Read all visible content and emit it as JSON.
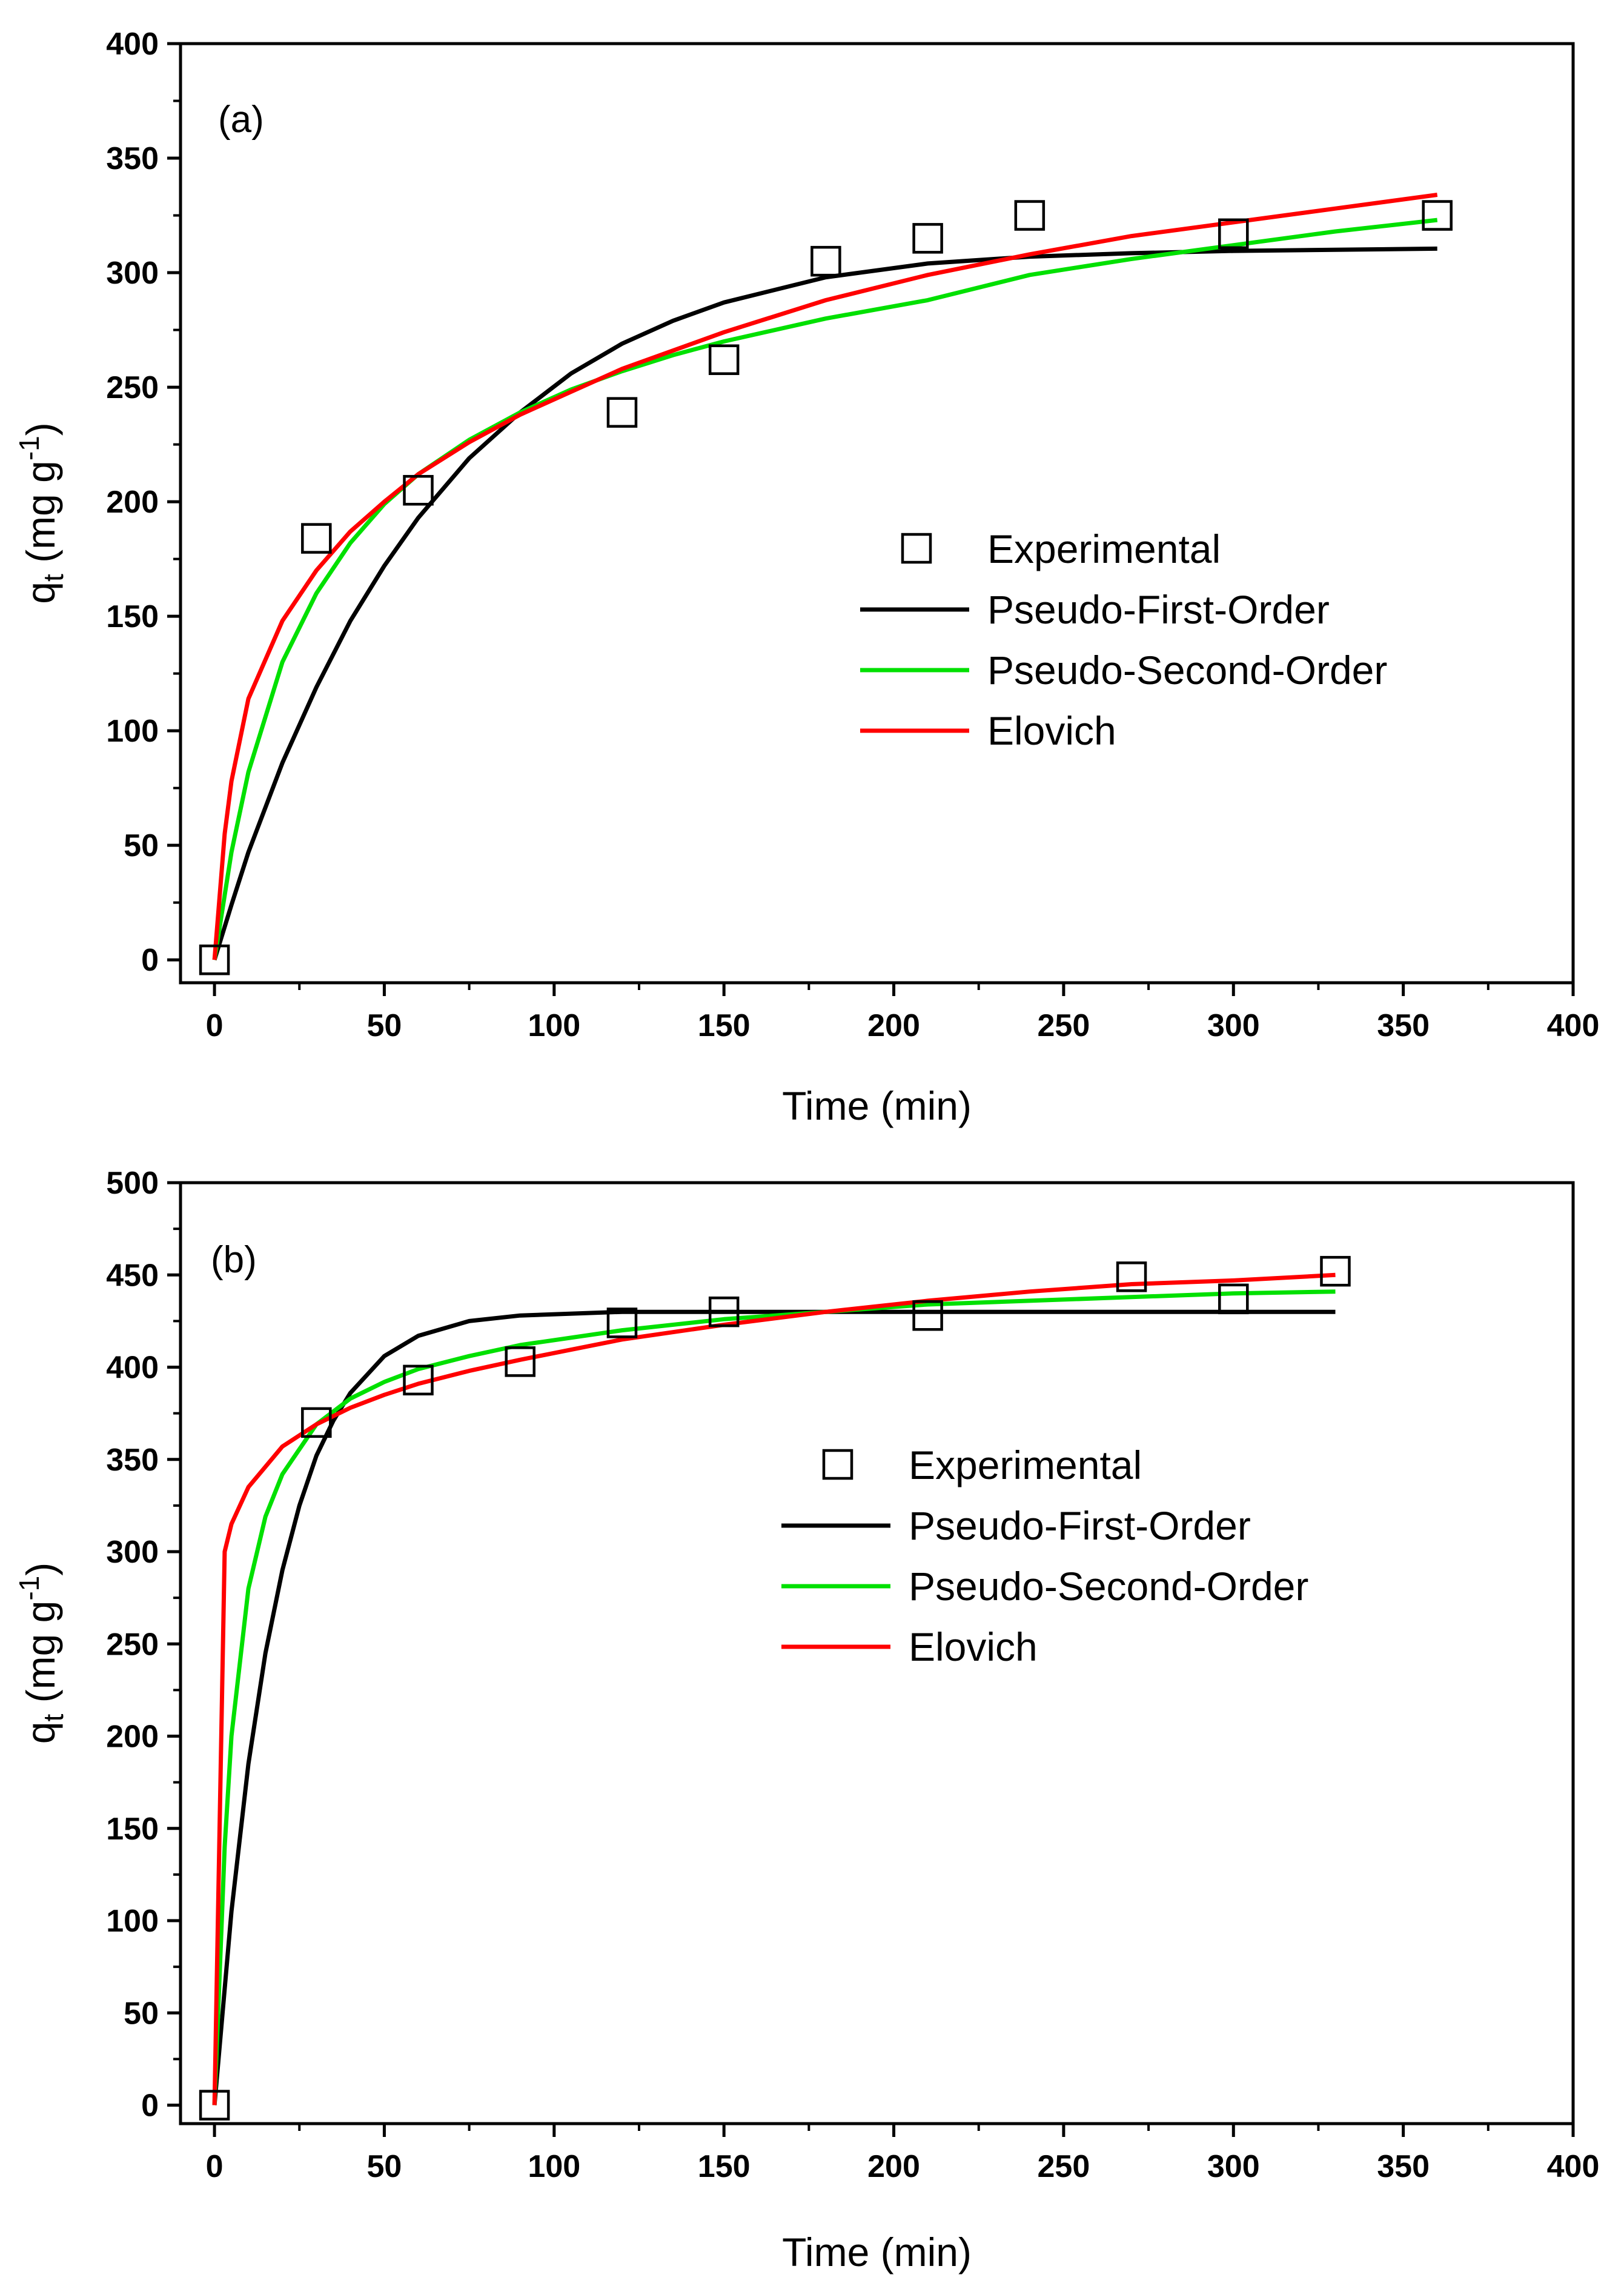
{
  "chart_data": [
    {
      "type": "scatter",
      "panel_label": "(a)",
      "xlabel": "Time (min)",
      "ylabel": {
        "base": "q",
        "sub": "t",
        "unit_pre": " (mg g",
        "unit_sup": "-1",
        "unit_post": ")"
      },
      "xlim": [
        -10,
        400
      ],
      "ylim": [
        -10,
        400
      ],
      "xticks": [
        0,
        50,
        100,
        150,
        200,
        250,
        300,
        350,
        400
      ],
      "yticks": [
        0,
        50,
        100,
        150,
        200,
        250,
        300,
        350,
        400
      ],
      "grid": false,
      "legend_position": "center-right",
      "legend": [
        "Experimental",
        "Pseudo-First-Order",
        "Pseudo-Second-Order",
        "Elovich"
      ],
      "experimental": {
        "name": "Experimental",
        "marker": "open-square",
        "x": [
          0,
          30,
          60,
          120,
          150,
          180,
          210,
          240,
          300,
          360
        ],
        "y": [
          0,
          184,
          205,
          239,
          262,
          305,
          315,
          325,
          317,
          325
        ]
      },
      "series": [
        {
          "name": "Pseudo-First-Order",
          "color": "#000000",
          "x": [
            0,
            5,
            10,
            20,
            30,
            40,
            50,
            60,
            75,
            90,
            105,
            120,
            135,
            150,
            180,
            210,
            240,
            270,
            300,
            330,
            360
          ],
          "y": [
            0,
            24,
            47,
            86,
            119,
            148,
            172,
            193,
            219,
            239,
            256,
            269,
            279,
            287,
            298,
            304,
            307,
            308.5,
            309.5,
            310,
            310.5
          ]
        },
        {
          "name": "Pseudo-Second-Order",
          "color": "#00e000",
          "x": [
            0,
            5,
            10,
            20,
            30,
            40,
            50,
            60,
            75,
            90,
            105,
            120,
            135,
            150,
            180,
            210,
            240,
            270,
            300,
            330,
            360
          ],
          "y": [
            0,
            47,
            82,
            130,
            160,
            182,
            199,
            212,
            227,
            239,
            249,
            257,
            264,
            270,
            280,
            288,
            299,
            306,
            312,
            318,
            323
          ]
        },
        {
          "name": "Elovich",
          "color": "#ff0000",
          "x": [
            0,
            3,
            5,
            10,
            20,
            30,
            40,
            50,
            60,
            75,
            90,
            105,
            120,
            135,
            150,
            180,
            210,
            240,
            270,
            300,
            330,
            360
          ],
          "y": [
            0,
            55,
            78,
            114,
            148,
            170,
            187,
            200,
            212,
            226,
            238,
            248,
            258,
            266,
            274,
            288,
            299,
            308,
            316,
            322,
            328,
            334
          ]
        }
      ]
    },
    {
      "type": "scatter",
      "panel_label": "(b)",
      "xlabel": "Time (min)",
      "ylabel": {
        "base": "q",
        "sub": "t",
        "unit_pre": " (mg g",
        "unit_sup": "-1",
        "unit_post": ")"
      },
      "xlim": [
        -10,
        400
      ],
      "ylim": [
        -10,
        500
      ],
      "xticks": [
        0,
        50,
        100,
        150,
        200,
        250,
        300,
        350,
        400
      ],
      "yticks": [
        0,
        50,
        100,
        150,
        200,
        250,
        300,
        350,
        400,
        450,
        500
      ],
      "grid": false,
      "legend_position": "center-right",
      "legend": [
        "Experimental",
        "Pseudo-First-Order",
        "Pseudo-Second-Order",
        "Elovich"
      ],
      "experimental": {
        "name": "Experimental",
        "marker": "open-square",
        "x": [
          0,
          30,
          60,
          90,
          120,
          150,
          210,
          270,
          300,
          330
        ],
        "y": [
          0,
          370,
          393,
          403,
          424,
          430,
          428,
          449,
          437,
          452
        ]
      },
      "series": [
        {
          "name": "Pseudo-First-Order",
          "color": "#000000",
          "x": [
            0,
            5,
            10,
            15,
            20,
            25,
            30,
            35,
            40,
            50,
            60,
            75,
            90,
            120,
            150,
            210,
            270,
            330
          ],
          "y": [
            0,
            105,
            185,
            245,
            290,
            325,
            352,
            371,
            386,
            406,
            417,
            425,
            428,
            430,
            430,
            430,
            430,
            430
          ]
        },
        {
          "name": "Pseudo-Second-Order",
          "color": "#00e000",
          "x": [
            0,
            3,
            5,
            10,
            15,
            20,
            30,
            40,
            50,
            60,
            75,
            90,
            120,
            150,
            180,
            210,
            240,
            270,
            300,
            330
          ],
          "y": [
            0,
            140,
            200,
            280,
            319,
            342,
            369,
            383,
            392,
            399,
            406,
            412,
            420,
            426,
            430,
            434,
            436,
            438,
            440,
            441
          ]
        },
        {
          "name": "Elovich",
          "color": "#ff0000",
          "x": [
            0,
            3,
            5,
            10,
            20,
            30,
            40,
            50,
            60,
            75,
            90,
            120,
            150,
            180,
            210,
            240,
            270,
            300,
            330
          ],
          "y": [
            0,
            300,
            315,
            335,
            357,
            369,
            378,
            385,
            391,
            398,
            404,
            415,
            423,
            430,
            436,
            441,
            445,
            447,
            450
          ]
        }
      ]
    }
  ]
}
